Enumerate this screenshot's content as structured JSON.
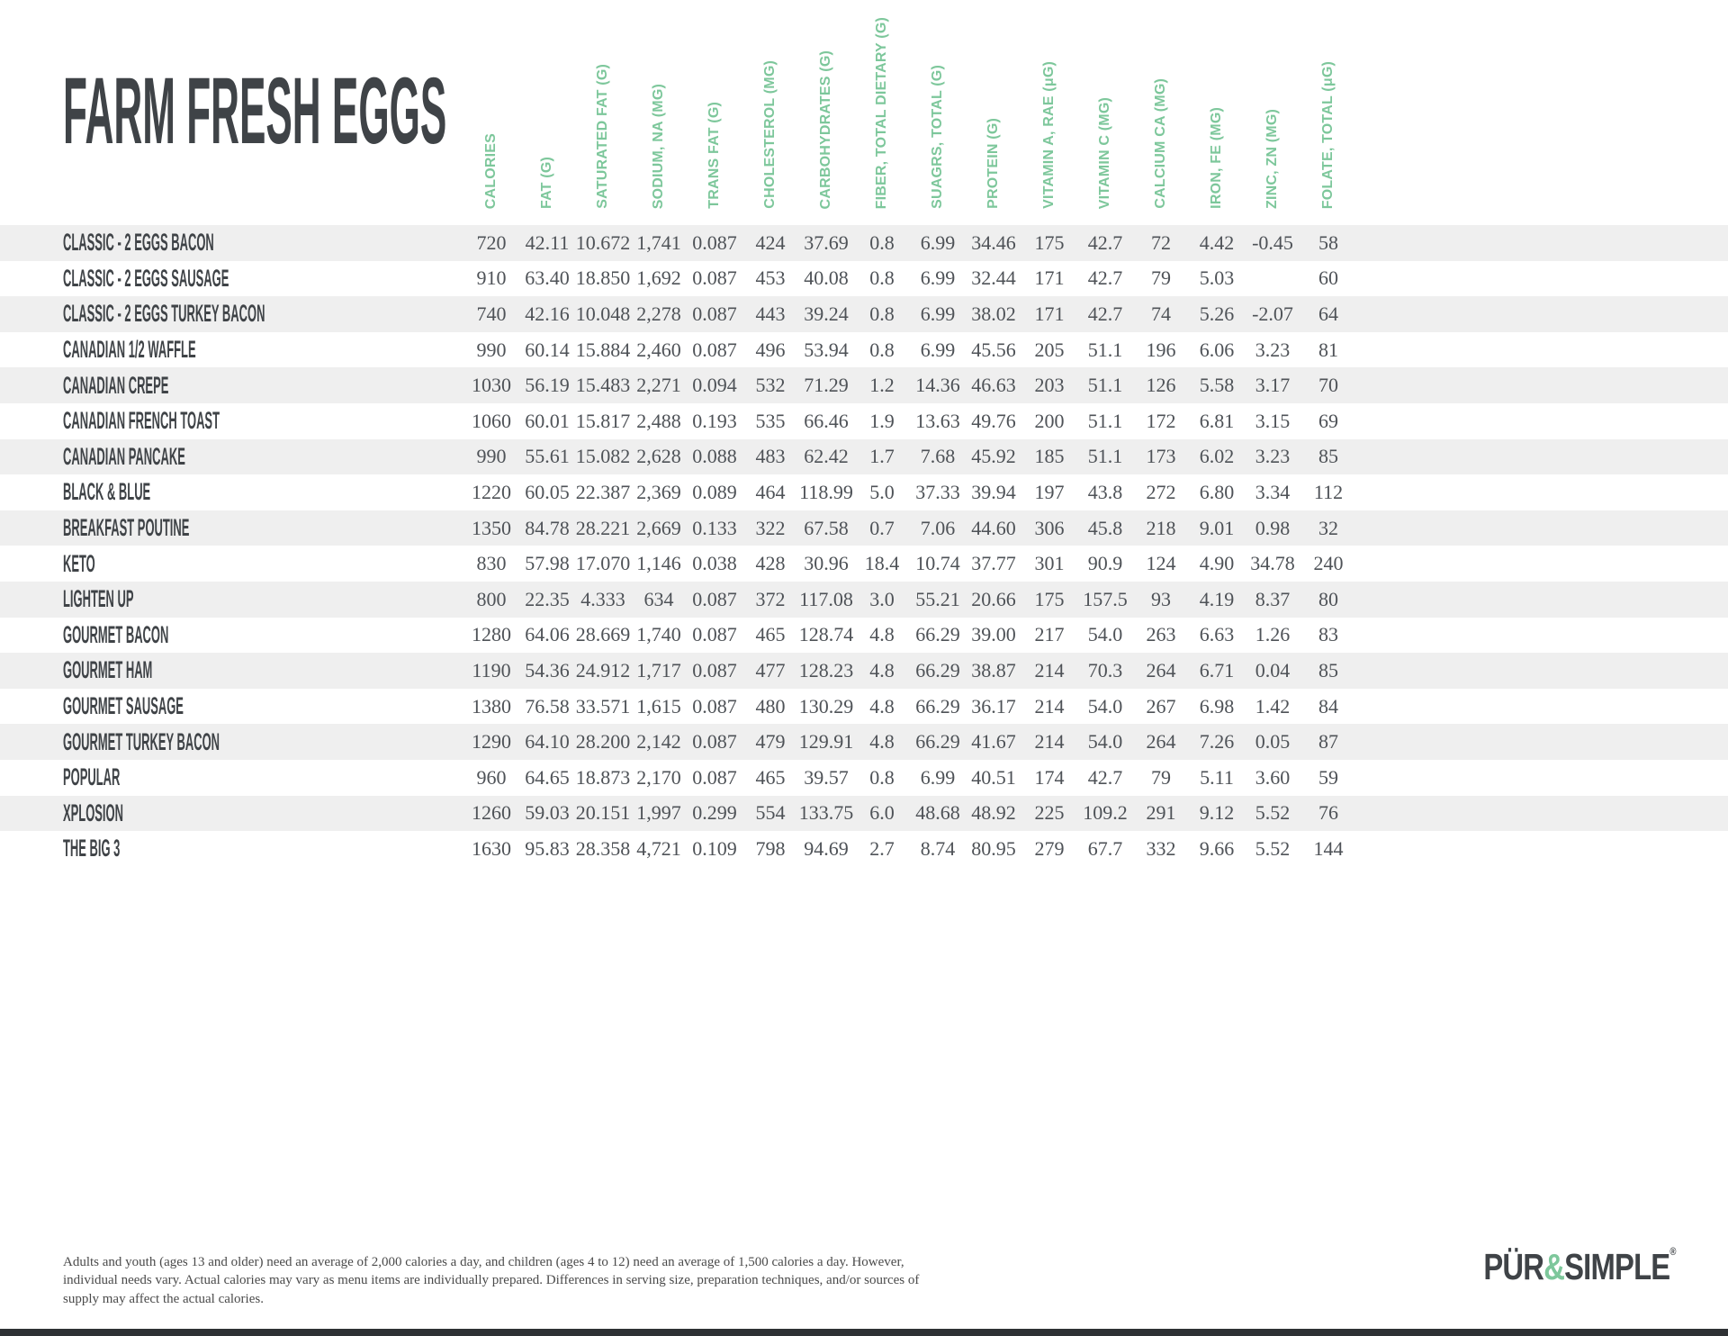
{
  "title": "FARM FRESH EGGS",
  "colors": {
    "green": "#7dc79b",
    "dark": "#3f4347",
    "value": "#4e5257",
    "stripe": "#efefef",
    "footnote": "#4a4a4a",
    "bar": "#2e3134"
  },
  "table": {
    "columns": [
      "CALORIES",
      "FAT (G)",
      "SATURATED FAT (G)",
      "SODIUM, NA (MG)",
      "TRANS FAT (G)",
      "CHOLESTEROL (MG)",
      "CARBOHYDRATES (G)",
      "FIBER, TOTAL DIETARY (G)",
      "SUAGRS, TOTAL (G)",
      "PROTEIN (G)",
      "VITAMIN A, RAE (μG)",
      "VITAMIN C (MG)",
      "CALCIUM CA (MG)",
      "IRON, FE (MG)",
      "ZINC, ZN (MG)",
      "FOLATE, TOTAL (μG)"
    ],
    "rows": [
      {
        "name": "CLASSIC - 2 EGGS BACON",
        "values": [
          "720",
          "42.11",
          "10.672",
          "1,741",
          "0.087",
          "424",
          "37.69",
          "0.8",
          "6.99",
          "34.46",
          "175",
          "42.7",
          "72",
          "4.42",
          "-0.45",
          "58"
        ]
      },
      {
        "name": "CLASSIC - 2 EGGS SAUSAGE",
        "values": [
          "910",
          "63.40",
          "18.850",
          "1,692",
          "0.087",
          "453",
          "40.08",
          "0.8",
          "6.99",
          "32.44",
          "171",
          "42.7",
          "79",
          "5.03",
          "",
          "60"
        ]
      },
      {
        "name": "CLASSIC - 2 EGGS TURKEY BACON",
        "values": [
          "740",
          "42.16",
          "10.048",
          "2,278",
          "0.087",
          "443",
          "39.24",
          "0.8",
          "6.99",
          "38.02",
          "171",
          "42.7",
          "74",
          "5.26",
          "-2.07",
          "64"
        ]
      },
      {
        "name": "CANADIAN 1/2 WAFFLE",
        "values": [
          "990",
          "60.14",
          "15.884",
          "2,460",
          "0.087",
          "496",
          "53.94",
          "0.8",
          "6.99",
          "45.56",
          "205",
          "51.1",
          "196",
          "6.06",
          "3.23",
          "81"
        ]
      },
      {
        "name": "CANADIAN CREPE",
        "values": [
          "1030",
          "56.19",
          "15.483",
          "2,271",
          "0.094",
          "532",
          "71.29",
          "1.2",
          "14.36",
          "46.63",
          "203",
          "51.1",
          "126",
          "5.58",
          "3.17",
          "70"
        ]
      },
      {
        "name": "CANADIAN FRENCH TOAST",
        "values": [
          "1060",
          "60.01",
          "15.817",
          "2,488",
          "0.193",
          "535",
          "66.46",
          "1.9",
          "13.63",
          "49.76",
          "200",
          "51.1",
          "172",
          "6.81",
          "3.15",
          "69"
        ]
      },
      {
        "name": "CANADIAN PANCAKE",
        "values": [
          "990",
          "55.61",
          "15.082",
          "2,628",
          "0.088",
          "483",
          "62.42",
          "1.7",
          "7.68",
          "45.92",
          "185",
          "51.1",
          "173",
          "6.02",
          "3.23",
          "85"
        ]
      },
      {
        "name": "BLACK & BLUE",
        "values": [
          "1220",
          "60.05",
          "22.387",
          "2,369",
          "0.089",
          "464",
          "118.99",
          "5.0",
          "37.33",
          "39.94",
          "197",
          "43.8",
          "272",
          "6.80",
          "3.34",
          "112"
        ]
      },
      {
        "name": "BREAKFAST POUTINE",
        "values": [
          "1350",
          "84.78",
          "28.221",
          "2,669",
          "0.133",
          "322",
          "67.58",
          "0.7",
          "7.06",
          "44.60",
          "306",
          "45.8",
          "218",
          "9.01",
          "0.98",
          "32"
        ]
      },
      {
        "name": "KETO",
        "values": [
          "830",
          "57.98",
          "17.070",
          "1,146",
          "0.038",
          "428",
          "30.96",
          "18.4",
          "10.74",
          "37.77",
          "301",
          "90.9",
          "124",
          "4.90",
          "34.78",
          "240"
        ]
      },
      {
        "name": "LIGHTEN UP",
        "values": [
          "800",
          "22.35",
          "4.333",
          "634",
          "0.087",
          "372",
          "117.08",
          "3.0",
          "55.21",
          "20.66",
          "175",
          "157.5",
          "93",
          "4.19",
          "8.37",
          "80"
        ]
      },
      {
        "name": "GOURMET BACON",
        "values": [
          "1280",
          "64.06",
          "28.669",
          "1,740",
          "0.087",
          "465",
          "128.74",
          "4.8",
          "66.29",
          "39.00",
          "217",
          "54.0",
          "263",
          "6.63",
          "1.26",
          "83"
        ]
      },
      {
        "name": "GOURMET HAM",
        "values": [
          "1190",
          "54.36",
          "24.912",
          "1,717",
          "0.087",
          "477",
          "128.23",
          "4.8",
          "66.29",
          "38.87",
          "214",
          "70.3",
          "264",
          "6.71",
          "0.04",
          "85"
        ]
      },
      {
        "name": "GOURMET SAUSAGE",
        "values": [
          "1380",
          "76.58",
          "33.571",
          "1,615",
          "0.087",
          "480",
          "130.29",
          "4.8",
          "66.29",
          "36.17",
          "214",
          "54.0",
          "267",
          "6.98",
          "1.42",
          "84"
        ]
      },
      {
        "name": "GOURMET TURKEY BACON",
        "values": [
          "1290",
          "64.10",
          "28.200",
          "2,142",
          "0.087",
          "479",
          "129.91",
          "4.8",
          "66.29",
          "41.67",
          "214",
          "54.0",
          "264",
          "7.26",
          "0.05",
          "87"
        ]
      },
      {
        "name": "POPULAR",
        "values": [
          "960",
          "64.65",
          "18.873",
          "2,170",
          "0.087",
          "465",
          "39.57",
          "0.8",
          "6.99",
          "40.51",
          "174",
          "42.7",
          "79",
          "5.11",
          "3.60",
          "59"
        ]
      },
      {
        "name": "XPLOSION",
        "values": [
          "1260",
          "59.03",
          "20.151",
          "1,997",
          "0.299",
          "554",
          "133.75",
          "6.0",
          "48.68",
          "48.92",
          "225",
          "109.2",
          "291",
          "9.12",
          "5.52",
          "76"
        ]
      },
      {
        "name": "THE BIG 3",
        "values": [
          "1630",
          "95.83",
          "28.358",
          "4,721",
          "0.109",
          "798",
          "94.69",
          "2.7",
          "8.74",
          "80.95",
          "279",
          "67.7",
          "332",
          "9.66",
          "5.52",
          "144"
        ]
      }
    ]
  },
  "footnote": "Adults and youth (ages 13 and older) need an average of 2,000 calories a day, and children (ages 4 to 12) need an average of 1,500 calories a day. However, individual needs vary. Actual calories may vary as menu items are individually prepared. Differences in serving size, preparation techniques, and/or sources of supply may affect the actual calories.",
  "logo": {
    "pur": "PÜR",
    "amp": "&",
    "simple": "SIMPLE",
    "reg": "®"
  }
}
